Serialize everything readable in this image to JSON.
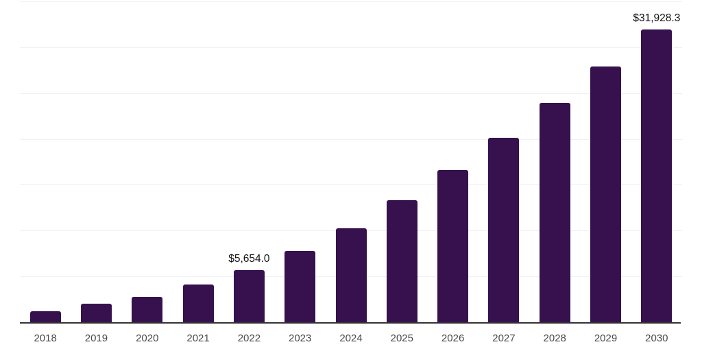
{
  "chart_data": {
    "type": "bar",
    "title": "",
    "xlabel": "",
    "ylabel": "",
    "categories": [
      "2018",
      "2019",
      "2020",
      "2021",
      "2022",
      "2023",
      "2024",
      "2025",
      "2026",
      "2027",
      "2028",
      "2029",
      "2030"
    ],
    "values": [
      1210,
      2030,
      2740,
      4150,
      5654.0,
      7760,
      10240,
      13280,
      16630,
      20110,
      23930,
      27920,
      31928.3
    ],
    "data_labels": [
      "",
      "",
      "",
      "",
      "$5,654.0",
      "",
      "",
      "",
      "",
      "",
      "",
      "",
      "$31,928.3"
    ],
    "ylim": [
      0,
      35000
    ],
    "gridline_step": 5000,
    "grid": true,
    "y_axis_labels_visible": false,
    "legend": "none",
    "colors": {
      "bar": "#36114D",
      "axis_line": "#333333",
      "gridline": "#f1f1f1",
      "value_label": "#111111",
      "tick_label": "#4a4a4a",
      "background": "#ffffff"
    }
  }
}
